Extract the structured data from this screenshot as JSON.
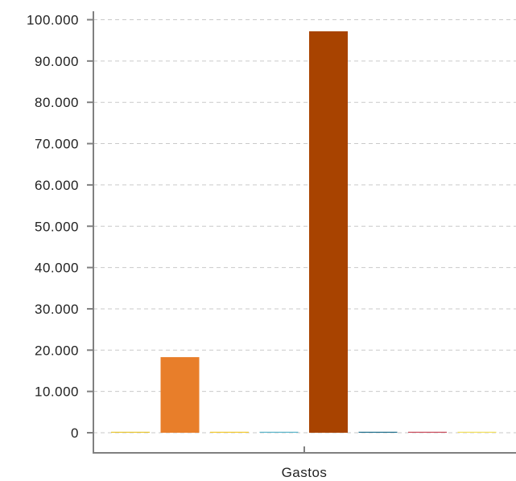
{
  "chart_data": {
    "type": "bar",
    "categories": [
      "Gastos"
    ],
    "ylim": [
      0,
      100000
    ],
    "yticks": [
      0,
      10000,
      20000,
      30000,
      40000,
      50000,
      60000,
      70000,
      80000,
      90000,
      100000
    ],
    "ytick_labels": [
      "0",
      "10.000",
      "20.000",
      "30.000",
      "40.000",
      "50.000",
      "60.000",
      "70.000",
      "80.000",
      "90.000",
      "100.000"
    ],
    "grid": true,
    "legend": "none",
    "title": "",
    "xlabel": "",
    "ylabel": "",
    "series": [
      {
        "values": [
          150
        ],
        "color": "#e8c531"
      },
      {
        "values": [
          18300
        ],
        "color": "#e87e2a"
      },
      {
        "values": [
          150
        ],
        "color": "#f2c92e"
      },
      {
        "values": [
          150
        ],
        "color": "#5ab4c9"
      },
      {
        "values": [
          97200
        ],
        "color": "#a84300"
      },
      {
        "values": [
          150
        ],
        "color": "#1f6f8b"
      },
      {
        "values": [
          150
        ],
        "color": "#c94c5c"
      },
      {
        "values": [
          150
        ],
        "color": "#f2df5e"
      }
    ]
  }
}
